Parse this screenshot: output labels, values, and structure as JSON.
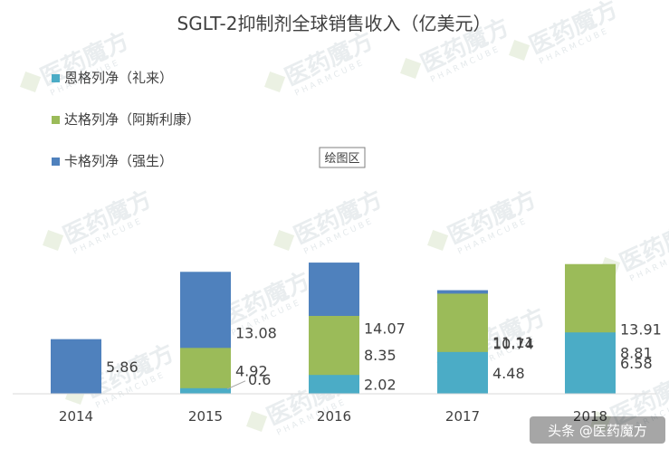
{
  "chart_data": {
    "type": "bar",
    "stacked": true,
    "title": "SGLT-2抑制剂全球销售收入（亿美元）",
    "categories": [
      "2014",
      "2015",
      "2016",
      "2017",
      "2018"
    ],
    "series": [
      {
        "name": "卡格列净（强生）",
        "color": "#4f81bd",
        "values": [
          5.86,
          13.08,
          14.07,
          11.11,
          8.81
        ]
      },
      {
        "name": "达格列净（阿斯利康）",
        "color": "#9bbb59",
        "values": [
          null,
          4.92,
          8.35,
          10.74,
          13.91
        ]
      },
      {
        "name": "恩格列净（礼来）",
        "color": "#4bacc6",
        "values": [
          null,
          0.6,
          2.02,
          4.48,
          6.58
        ]
      }
    ],
    "legend_position": "top-left",
    "grid": false,
    "ylim": [
      0,
      30
    ]
  },
  "tooltip": "绘图区",
  "watermark": {
    "text": "医药魔方",
    "sub": "PHARMCUBE"
  },
  "footer": "头条 @医药魔方"
}
